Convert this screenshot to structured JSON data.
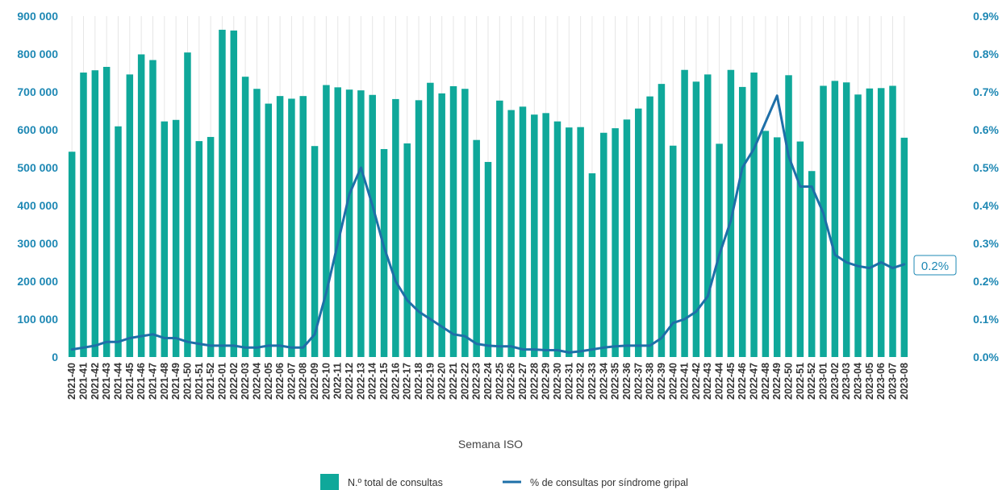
{
  "chart_data": {
    "type": "bar",
    "title": "",
    "xlabel": "Semana ISO",
    "ylabel": "",
    "ylim": [
      0,
      900000
    ],
    "y2lim": [
      0,
      0.9
    ],
    "grid": "vertical",
    "legend_position": "bottom-center",
    "categories": [
      "2021-40",
      "2021-41",
      "2021-42",
      "2021-43",
      "2021-44",
      "2021-45",
      "2021-46",
      "2021-47",
      "2021-48",
      "2021-49",
      "2021-50",
      "2021-51",
      "2021-52",
      "2022-01",
      "2022-02",
      "2022-03",
      "2022-04",
      "2022-05",
      "2022-06",
      "2022-07",
      "2022-08",
      "2022-09",
      "2022-10",
      "2022-11",
      "2022-12",
      "2022-13",
      "2022-14",
      "2022-15",
      "2022-16",
      "2022-17",
      "2022-18",
      "2022-19",
      "2022-20",
      "2022-21",
      "2022-22",
      "2022-23",
      "2022-24",
      "2022-25",
      "2022-26",
      "2022-27",
      "2022-28",
      "2022-29",
      "2022-30",
      "2022-31",
      "2022-32",
      "2022-33",
      "2022-34",
      "2022-35",
      "2022-36",
      "2022-37",
      "2022-38",
      "2022-39",
      "2022-40",
      "2022-41",
      "2022-42",
      "2022-43",
      "2022-44",
      "2022-45",
      "2022-46",
      "2022-47",
      "2022-48",
      "2022-49",
      "2022-50",
      "2022-51",
      "2022-52",
      "2023-01",
      "2023-02",
      "2023-03",
      "2023-04",
      "2023-05",
      "2023-06",
      "2023-07",
      "2023-08"
    ],
    "series": [
      {
        "name": "N.º total de consultas",
        "type": "bar",
        "axis": "left",
        "color": "#0fa89a",
        "values": [
          542000,
          751000,
          757000,
          766000,
          609000,
          746000,
          799000,
          784000,
          622000,
          626000,
          804000,
          570000,
          581000,
          864000,
          862000,
          740000,
          708000,
          669000,
          689000,
          682000,
          689000,
          557000,
          718000,
          712000,
          706000,
          704000,
          692000,
          549000,
          681000,
          564000,
          678000,
          724000,
          696000,
          715000,
          708000,
          573000,
          515000,
          677000,
          652000,
          661000,
          640000,
          644000,
          622000,
          606000,
          607000,
          485000,
          592000,
          604000,
          627000,
          656000,
          688000,
          721000,
          558000,
          758000,
          727000,
          746000,
          563000,
          758000,
          713000,
          751000,
          597000,
          580000,
          744000,
          569000,
          491000,
          716000,
          729000,
          725000,
          693000,
          709000,
          710000,
          716000,
          579000
        ]
      },
      {
        "name": "% de consultas por síndrome gripal",
        "type": "line",
        "axis": "right",
        "color": "#1e6fa8",
        "values": [
          0.02,
          0.025,
          0.03,
          0.04,
          0.04,
          0.05,
          0.055,
          0.06,
          0.05,
          0.05,
          0.04,
          0.035,
          0.03,
          0.03,
          0.03,
          0.025,
          0.025,
          0.03,
          0.03,
          0.025,
          0.025,
          0.06,
          0.17,
          0.3,
          0.43,
          0.5,
          0.4,
          0.29,
          0.2,
          0.15,
          0.12,
          0.1,
          0.08,
          0.06,
          0.055,
          0.035,
          0.03,
          0.028,
          0.028,
          0.02,
          0.02,
          0.018,
          0.018,
          0.012,
          0.015,
          0.02,
          0.025,
          0.028,
          0.03,
          0.03,
          0.03,
          0.05,
          0.09,
          0.1,
          0.12,
          0.16,
          0.27,
          0.36,
          0.5,
          0.55,
          0.62,
          0.69,
          0.53,
          0.45,
          0.45,
          0.38,
          0.27,
          0.25,
          0.24,
          0.235,
          0.25,
          0.235,
          0.245
        ]
      }
    ],
    "y_ticks": [
      "0",
      "100 000",
      "200 000",
      "300 000",
      "400 000",
      "500 000",
      "600 000",
      "700 000",
      "800 000",
      "900 000"
    ],
    "y_tick_values": [
      0,
      100000,
      200000,
      300000,
      400000,
      500000,
      600000,
      700000,
      800000,
      900000
    ],
    "y2_ticks": [
      "0.0%",
      "0.1%",
      "0.2%",
      "0.3%",
      "0.4%",
      "0.5%",
      "0.6%",
      "0.7%",
      "0.8%",
      "0.9%"
    ],
    "y2_tick_values": [
      0,
      0.1,
      0.2,
      0.3,
      0.4,
      0.5,
      0.6,
      0.7,
      0.8,
      0.9
    ],
    "end_label": "0.2%",
    "legend": [
      {
        "label": "N.º total de consultas",
        "marker": "square",
        "color": "#0fa89a"
      },
      {
        "label": "% de consultas por síndrome gripal",
        "marker": "line",
        "color": "#1e6fa8"
      }
    ]
  }
}
